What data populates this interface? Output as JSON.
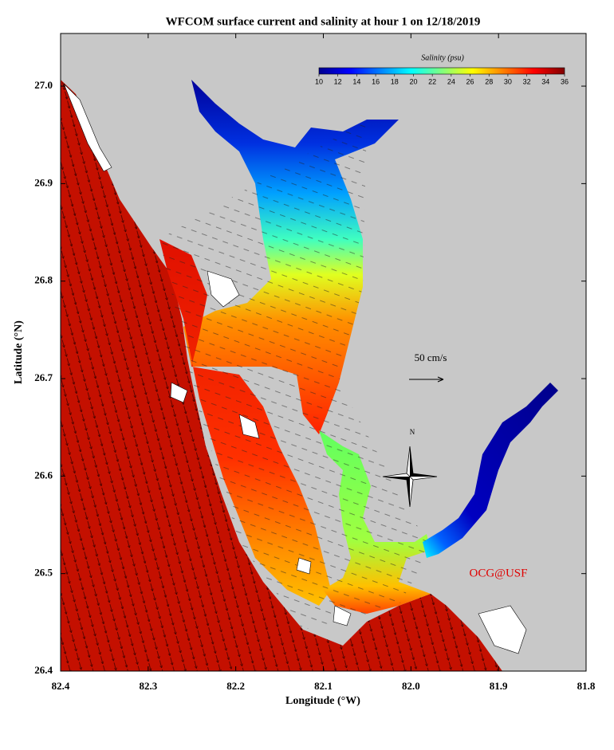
{
  "chart_data": {
    "type": "map",
    "title": "WFCOM surface current and salinity at hour 1 on 12/18/2019",
    "xlabel": "Longitude (°W)",
    "ylabel": "Latitude (°N)",
    "xlim": [
      82.4,
      81.8
    ],
    "xticks": [
      82.4,
      82.3,
      82.2,
      82.1,
      {
        "value": 82,
        "label": "82.0"
      },
      81.9,
      81.8
    ],
    "ylim": [
      26.4,
      27.054
    ],
    "yticks": [
      26.4,
      26.5,
      26.6,
      26.7,
      26.8,
      26.9,
      {
        "value": 27,
        "label": "27.0"
      }
    ],
    "colorbar": {
      "label": "Salinity (psu)",
      "range": [
        10,
        36
      ],
      "ticks": [
        10,
        12,
        14,
        16,
        18,
        20,
        22,
        24,
        26,
        28,
        30,
        32,
        34,
        36
      ],
      "colors": [
        "#00008f",
        "#0000ff",
        "#0080ff",
        "#00ffff",
        "#80ff80",
        "#ffff00",
        "#ff8000",
        "#ff0000",
        "#800000"
      ]
    },
    "scale_label": "50 cm/s",
    "north_label": "N",
    "credit": "OCG@USF"
  }
}
